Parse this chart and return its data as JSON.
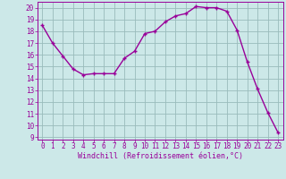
{
  "x": [
    0,
    1,
    2,
    3,
    4,
    5,
    6,
    7,
    8,
    9,
    10,
    11,
    12,
    13,
    14,
    15,
    16,
    17,
    18,
    19,
    20,
    21,
    22,
    23
  ],
  "y": [
    18.5,
    17.0,
    15.9,
    14.8,
    14.3,
    14.4,
    14.4,
    14.4,
    15.7,
    16.3,
    17.8,
    18.0,
    18.8,
    19.3,
    19.5,
    20.1,
    20.0,
    20.0,
    19.7,
    18.1,
    15.4,
    13.1,
    11.1,
    9.4
  ],
  "line_color": "#990099",
  "marker": "+",
  "marker_size": 3,
  "marker_lw": 1.0,
  "line_width": 1.0,
  "bg_color": "#cce8e8",
  "grid_color": "#99bbbb",
  "xlabel": "Windchill (Refroidissement éolien,°C)",
  "xlabel_color": "#990099",
  "tick_color": "#990099",
  "label_color": "#990099",
  "ylim_min": 8.8,
  "ylim_max": 20.5,
  "xlim_min": -0.5,
  "xlim_max": 23.5,
  "yticks": [
    9,
    10,
    11,
    12,
    13,
    14,
    15,
    16,
    17,
    18,
    19,
    20
  ],
  "xticks": [
    0,
    1,
    2,
    3,
    4,
    5,
    6,
    7,
    8,
    9,
    10,
    11,
    12,
    13,
    14,
    15,
    16,
    17,
    18,
    19,
    20,
    21,
    22,
    23
  ],
  "xtick_labels": [
    "0",
    "1",
    "2",
    "3",
    "4",
    "5",
    "6",
    "7",
    "8",
    "9",
    "10",
    "11",
    "12",
    "13",
    "14",
    "15",
    "16",
    "17",
    "18",
    "19",
    "20",
    "21",
    "22",
    "23"
  ],
  "ytick_labels": [
    "9",
    "10",
    "11",
    "12",
    "13",
    "14",
    "15",
    "16",
    "17",
    "18",
    "19",
    "20"
  ],
  "tick_fontsize": 5.5,
  "xlabel_fontsize": 6.0
}
